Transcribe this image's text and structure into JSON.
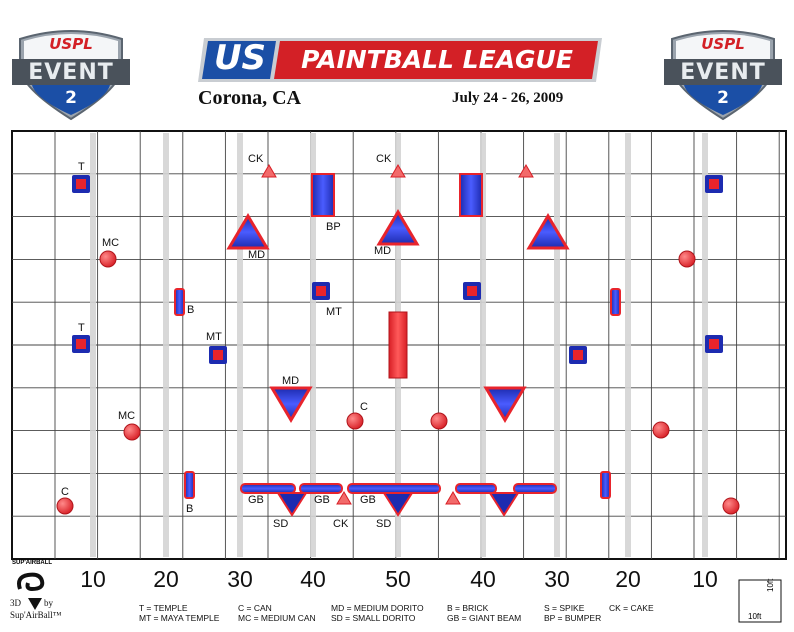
{
  "header": {
    "badge_top": "USPL",
    "badge_mid": "EVENT",
    "badge_num": "2",
    "banner_us": "US",
    "banner_text": "PAINTBALL LEAGUE",
    "city": "Corona, CA",
    "dates": "July 24 - 26, 2009"
  },
  "colors": {
    "red": "#e8242c",
    "blue": "#2233cc",
    "banner_blue": "#1b4fa6",
    "banner_red": "#d32026"
  },
  "field": {
    "yard_markers": [
      "10",
      "20",
      "30",
      "40",
      "50",
      "40",
      "30",
      "20",
      "10"
    ],
    "labels": {
      "t": "T",
      "mc": "MC",
      "ck": "CK",
      "bp": "BP",
      "md": "MD",
      "b": "B",
      "mt": "MT",
      "c": "C",
      "gb": "GB",
      "sd": "SD"
    }
  },
  "legend": [
    [
      "T = TEMPLE",
      "MT = MAYA TEMPLE"
    ],
    [
      "C = CAN",
      "MC = MEDIUM CAN"
    ],
    [
      "MD = MEDIUM DORITO",
      "SD = SMALL DORITO"
    ],
    [
      "B = BRICK",
      "GB = GIANT BEAM"
    ],
    [
      "S = SPIKE",
      "BP = BUMPER"
    ],
    [
      "CK = CAKE",
      ""
    ]
  ],
  "credit": {
    "brand": "SUP'AIRBALL",
    "line1": "3D",
    "line2": "by",
    "line3": "Sup'AirBall™"
  },
  "scale": {
    "w": "10ft",
    "h": "10ft"
  }
}
